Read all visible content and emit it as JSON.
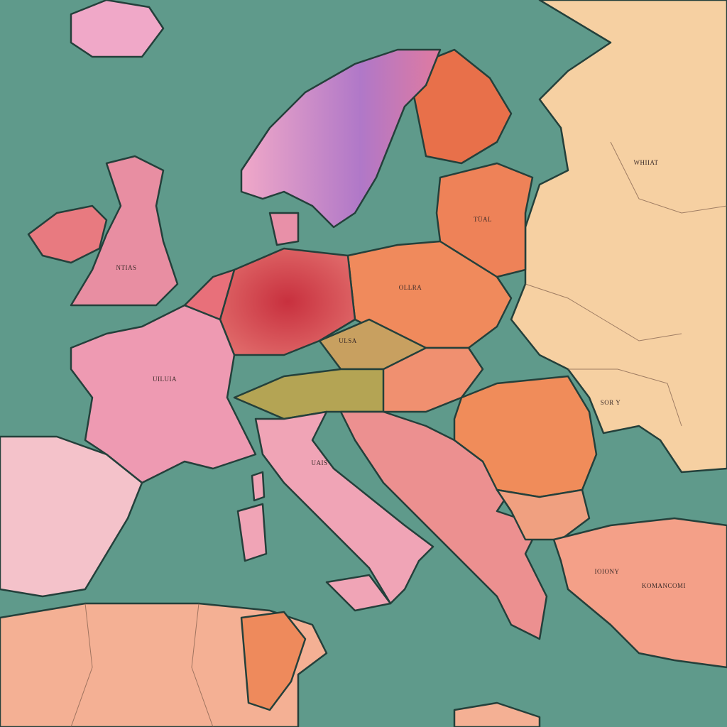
{
  "map": {
    "labels": [
      "WHIIAT",
      "TÜAL",
      "NTIAS",
      "OLLRA",
      "ULSA",
      "UILUIA",
      "SOR Y",
      "UAIS",
      "IOIONY",
      "KOMANCOMI"
    ]
  }
}
